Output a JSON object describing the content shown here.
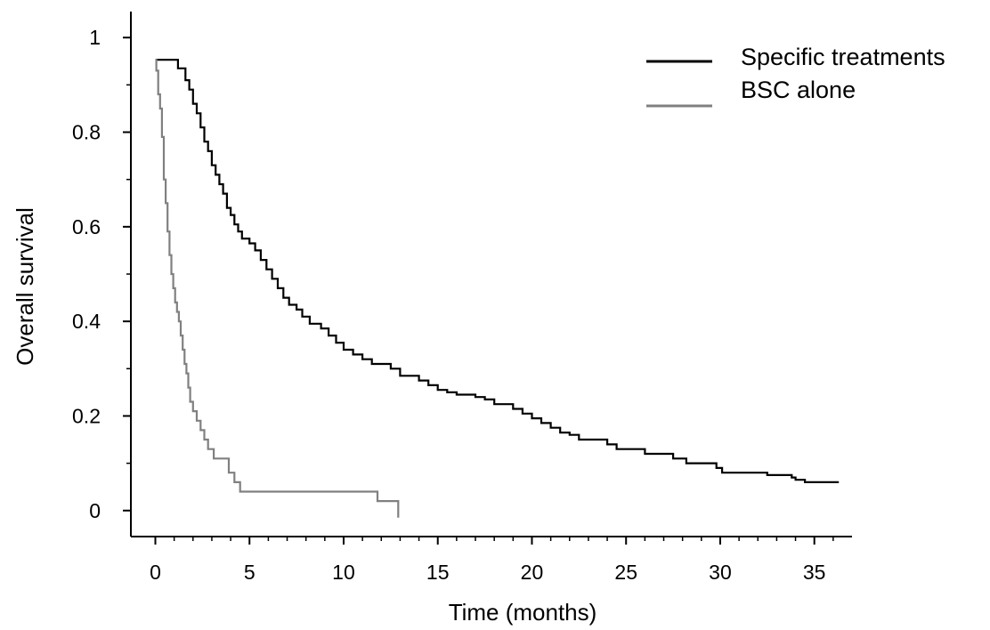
{
  "chart_data": {
    "type": "line",
    "step": true,
    "xlabel": "Time (months)",
    "ylabel": "Overall survival",
    "xlim": [
      -1.3,
      37
    ],
    "ylim": [
      -0.055,
      1.055
    ],
    "xticks": [
      0,
      5,
      10,
      15,
      20,
      25,
      30,
      35
    ],
    "yticks": [
      0,
      0.2,
      0.4,
      0.6,
      0.8,
      1
    ],
    "ytick_labels": [
      "0",
      "0.2",
      "0.4",
      "0.6",
      "0.8",
      "1"
    ],
    "legend_position": "top-right",
    "grid": false,
    "series": [
      {
        "name": "Specific treatments",
        "color": "#000000",
        "points": [
          [
            0,
            0.953
          ],
          [
            0.8,
            0.953
          ],
          [
            1.2,
            0.935
          ],
          [
            1.6,
            0.91
          ],
          [
            1.8,
            0.89
          ],
          [
            2.0,
            0.86
          ],
          [
            2.2,
            0.84
          ],
          [
            2.4,
            0.81
          ],
          [
            2.6,
            0.78
          ],
          [
            2.8,
            0.76
          ],
          [
            3.0,
            0.73
          ],
          [
            3.2,
            0.71
          ],
          [
            3.4,
            0.69
          ],
          [
            3.6,
            0.67
          ],
          [
            3.8,
            0.64
          ],
          [
            4.0,
            0.625
          ],
          [
            4.2,
            0.605
          ],
          [
            4.4,
            0.59
          ],
          [
            4.6,
            0.575
          ],
          [
            5.0,
            0.565
          ],
          [
            5.3,
            0.55
          ],
          [
            5.6,
            0.53
          ],
          [
            5.9,
            0.51
          ],
          [
            6.2,
            0.49
          ],
          [
            6.5,
            0.47
          ],
          [
            6.8,
            0.45
          ],
          [
            7.1,
            0.435
          ],
          [
            7.5,
            0.425
          ],
          [
            7.8,
            0.41
          ],
          [
            8.2,
            0.395
          ],
          [
            8.8,
            0.385
          ],
          [
            9.2,
            0.37
          ],
          [
            9.6,
            0.355
          ],
          [
            10.0,
            0.34
          ],
          [
            10.5,
            0.33
          ],
          [
            11.0,
            0.32
          ],
          [
            11.5,
            0.31
          ],
          [
            12.5,
            0.3
          ],
          [
            13.0,
            0.285
          ],
          [
            14.0,
            0.275
          ],
          [
            14.5,
            0.265
          ],
          [
            15.0,
            0.255
          ],
          [
            15.5,
            0.25
          ],
          [
            16.0,
            0.245
          ],
          [
            17.0,
            0.24
          ],
          [
            17.5,
            0.235
          ],
          [
            18.0,
            0.225
          ],
          [
            19.0,
            0.215
          ],
          [
            19.5,
            0.205
          ],
          [
            20.0,
            0.195
          ],
          [
            20.5,
            0.185
          ],
          [
            21.0,
            0.175
          ],
          [
            21.5,
            0.165
          ],
          [
            22.0,
            0.16
          ],
          [
            22.5,
            0.15
          ],
          [
            24.0,
            0.14
          ],
          [
            24.5,
            0.13
          ],
          [
            26.0,
            0.12
          ],
          [
            27.5,
            0.11
          ],
          [
            28.2,
            0.1
          ],
          [
            29.8,
            0.09
          ],
          [
            30.1,
            0.08
          ],
          [
            32.5,
            0.075
          ],
          [
            33.8,
            0.07
          ],
          [
            34.0,
            0.065
          ],
          [
            34.5,
            0.06
          ],
          [
            36.3,
            0.06
          ]
        ]
      },
      {
        "name": "BSC alone",
        "color": "#808080",
        "points": [
          [
            0,
            0.953
          ],
          [
            0.05,
            0.93
          ],
          [
            0.15,
            0.88
          ],
          [
            0.25,
            0.85
          ],
          [
            0.35,
            0.79
          ],
          [
            0.45,
            0.7
          ],
          [
            0.55,
            0.65
          ],
          [
            0.65,
            0.59
          ],
          [
            0.75,
            0.54
          ],
          [
            0.85,
            0.5
          ],
          [
            0.95,
            0.47
          ],
          [
            1.05,
            0.44
          ],
          [
            1.15,
            0.42
          ],
          [
            1.25,
            0.4
          ],
          [
            1.35,
            0.37
          ],
          [
            1.45,
            0.34
          ],
          [
            1.55,
            0.31
          ],
          [
            1.65,
            0.29
          ],
          [
            1.75,
            0.26
          ],
          [
            1.85,
            0.23
          ],
          [
            2.0,
            0.21
          ],
          [
            2.2,
            0.19
          ],
          [
            2.4,
            0.17
          ],
          [
            2.6,
            0.15
          ],
          [
            2.8,
            0.13
          ],
          [
            3.1,
            0.11
          ],
          [
            3.9,
            0.08
          ],
          [
            4.2,
            0.06
          ],
          [
            4.5,
            0.04
          ],
          [
            11.8,
            0.02
          ],
          [
            12.9,
            -0.015
          ]
        ]
      }
    ]
  }
}
